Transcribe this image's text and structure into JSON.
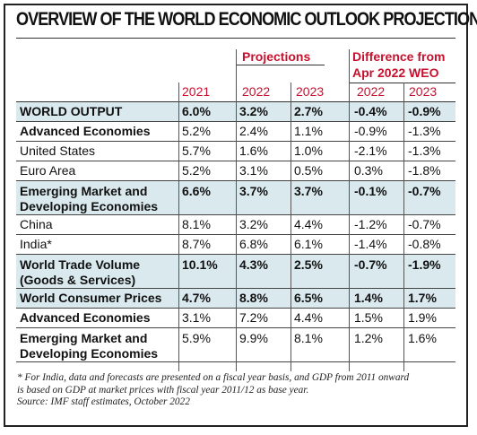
{
  "title": "OVERVIEW OF THE WORLD ECONOMIC OUTLOOK PROJECTIONS",
  "headers": {
    "projections": "Projections",
    "difference_line1": "Difference from",
    "difference_line2": "Apr 2022 WEO",
    "years": [
      "2021",
      "2022",
      "2023",
      "2022",
      "2023"
    ]
  },
  "rows": [
    {
      "label": "WORLD OUTPUT",
      "values": [
        "6.0%",
        "3.2%",
        "2.7%",
        "-0.4%",
        "-0.9%"
      ],
      "bold": true,
      "shaded": true
    },
    {
      "label": "Advanced Economies",
      "values": [
        "5.2%",
        "2.4%",
        "1.1%",
        "-0.9%",
        "-1.3%"
      ],
      "bold": false,
      "label_bold": true
    },
    {
      "label": "United States",
      "values": [
        "5.7%",
        "1.6%",
        "1.0%",
        "-2.1%",
        "-1.3%"
      ]
    },
    {
      "label": "Euro Area",
      "values": [
        "5.2%",
        "3.1%",
        "0.5%",
        "0.3%",
        "-1.8%"
      ]
    },
    {
      "label_line1": "Emerging Market and",
      "label_line2": "Developing Economies",
      "values": [
        "6.6%",
        "3.7%",
        "3.7%",
        "-0.1%",
        "-0.7%"
      ],
      "bold": true,
      "shaded": true
    },
    {
      "label": "China",
      "values": [
        "8.1%",
        "3.2%",
        "4.4%",
        "-1.2%",
        "-0.7%"
      ]
    },
    {
      "label": "India*",
      "values": [
        "8.7%",
        "6.8%",
        "6.1%",
        "-1.4%",
        "-0.8%"
      ]
    },
    {
      "label_line1": "World Trade Volume",
      "label_line2": "(Goods & Services)",
      "values": [
        "10.1%",
        "4.3%",
        "2.5%",
        "-0.7%",
        "-1.9%"
      ],
      "bold": true,
      "shaded": true
    },
    {
      "label": "World Consumer Prices",
      "values": [
        "4.7%",
        "8.8%",
        "6.5%",
        "1.4%",
        "1.7%"
      ],
      "bold": true,
      "shaded": true
    },
    {
      "label": "Advanced Economies",
      "values": [
        "3.1%",
        "7.2%",
        "4.4%",
        "1.5%",
        "1.9%"
      ],
      "label_bold": true
    },
    {
      "label_line1": "Emerging Market and",
      "label_line2": "Developing Economies",
      "values": [
        "5.9%",
        "9.9%",
        "8.1%",
        "1.2%",
        "1.6%"
      ],
      "label_bold": true
    }
  ],
  "footnote_line1": "* For India, data and forecasts are presented on a fiscal year basis, and GDP from 2011 onward",
  "footnote_line2": "is based on GDP at market prices with fiscal year 2011/12 as base year.",
  "source": "Source: IMF staff estimates, October 2022",
  "colors": {
    "accent_red": "#c8102e",
    "shade": "#d9e9ee"
  }
}
